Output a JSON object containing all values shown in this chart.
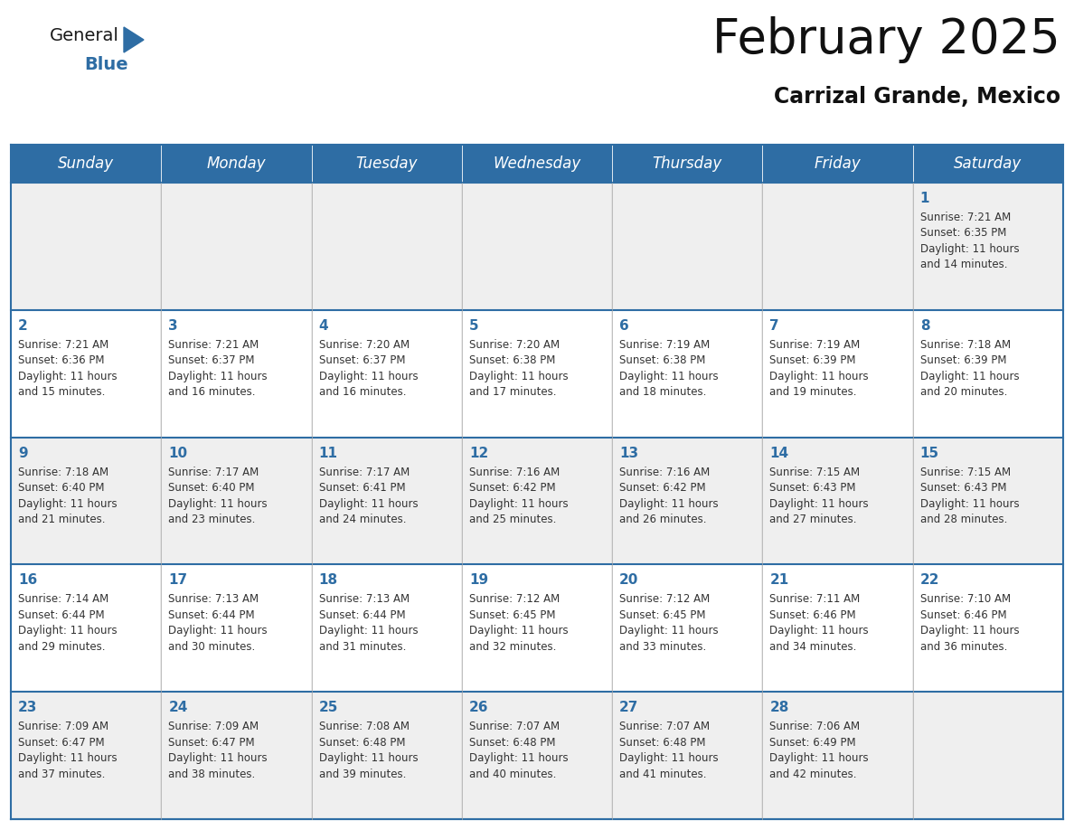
{
  "title": "February 2025",
  "subtitle": "Carrizal Grande, Mexico",
  "header_color": "#2E6DA4",
  "header_text_color": "#FFFFFF",
  "bg_color": "#FFFFFF",
  "cell_bg_row0": "#EFEFEF",
  "cell_bg_row1": "#FFFFFF",
  "cell_bg_row2": "#EFEFEF",
  "cell_bg_row3": "#FFFFFF",
  "cell_bg_row4": "#EFEFEF",
  "day_names": [
    "Sunday",
    "Monday",
    "Tuesday",
    "Wednesday",
    "Thursday",
    "Friday",
    "Saturday"
  ],
  "title_fontsize": 38,
  "subtitle_fontsize": 17,
  "header_fontsize": 12,
  "day_num_fontsize": 11,
  "cell_fontsize": 8.5,
  "text_color": "#333333",
  "day_num_color": "#2E6DA4",
  "line_color": "#2E6DA4",
  "logo_general_color": "#1a1a1a",
  "logo_blue_color": "#2E6DA4",
  "days": [
    {
      "day": 1,
      "col": 6,
      "row": 0,
      "sunrise": "7:21 AM",
      "sunset": "6:35 PM",
      "daylight": "11 hours and 14 minutes."
    },
    {
      "day": 2,
      "col": 0,
      "row": 1,
      "sunrise": "7:21 AM",
      "sunset": "6:36 PM",
      "daylight": "11 hours and 15 minutes."
    },
    {
      "day": 3,
      "col": 1,
      "row": 1,
      "sunrise": "7:21 AM",
      "sunset": "6:37 PM",
      "daylight": "11 hours and 16 minutes."
    },
    {
      "day": 4,
      "col": 2,
      "row": 1,
      "sunrise": "7:20 AM",
      "sunset": "6:37 PM",
      "daylight": "11 hours and 16 minutes."
    },
    {
      "day": 5,
      "col": 3,
      "row": 1,
      "sunrise": "7:20 AM",
      "sunset": "6:38 PM",
      "daylight": "11 hours and 17 minutes."
    },
    {
      "day": 6,
      "col": 4,
      "row": 1,
      "sunrise": "7:19 AM",
      "sunset": "6:38 PM",
      "daylight": "11 hours and 18 minutes."
    },
    {
      "day": 7,
      "col": 5,
      "row": 1,
      "sunrise": "7:19 AM",
      "sunset": "6:39 PM",
      "daylight": "11 hours and 19 minutes."
    },
    {
      "day": 8,
      "col": 6,
      "row": 1,
      "sunrise": "7:18 AM",
      "sunset": "6:39 PM",
      "daylight": "11 hours and 20 minutes."
    },
    {
      "day": 9,
      "col": 0,
      "row": 2,
      "sunrise": "7:18 AM",
      "sunset": "6:40 PM",
      "daylight": "11 hours and 21 minutes."
    },
    {
      "day": 10,
      "col": 1,
      "row": 2,
      "sunrise": "7:17 AM",
      "sunset": "6:40 PM",
      "daylight": "11 hours and 23 minutes."
    },
    {
      "day": 11,
      "col": 2,
      "row": 2,
      "sunrise": "7:17 AM",
      "sunset": "6:41 PM",
      "daylight": "11 hours and 24 minutes."
    },
    {
      "day": 12,
      "col": 3,
      "row": 2,
      "sunrise": "7:16 AM",
      "sunset": "6:42 PM",
      "daylight": "11 hours and 25 minutes."
    },
    {
      "day": 13,
      "col": 4,
      "row": 2,
      "sunrise": "7:16 AM",
      "sunset": "6:42 PM",
      "daylight": "11 hours and 26 minutes."
    },
    {
      "day": 14,
      "col": 5,
      "row": 2,
      "sunrise": "7:15 AM",
      "sunset": "6:43 PM",
      "daylight": "11 hours and 27 minutes."
    },
    {
      "day": 15,
      "col": 6,
      "row": 2,
      "sunrise": "7:15 AM",
      "sunset": "6:43 PM",
      "daylight": "11 hours and 28 minutes."
    },
    {
      "day": 16,
      "col": 0,
      "row": 3,
      "sunrise": "7:14 AM",
      "sunset": "6:44 PM",
      "daylight": "11 hours and 29 minutes."
    },
    {
      "day": 17,
      "col": 1,
      "row": 3,
      "sunrise": "7:13 AM",
      "sunset": "6:44 PM",
      "daylight": "11 hours and 30 minutes."
    },
    {
      "day": 18,
      "col": 2,
      "row": 3,
      "sunrise": "7:13 AM",
      "sunset": "6:44 PM",
      "daylight": "11 hours and 31 minutes."
    },
    {
      "day": 19,
      "col": 3,
      "row": 3,
      "sunrise": "7:12 AM",
      "sunset": "6:45 PM",
      "daylight": "11 hours and 32 minutes."
    },
    {
      "day": 20,
      "col": 4,
      "row": 3,
      "sunrise": "7:12 AM",
      "sunset": "6:45 PM",
      "daylight": "11 hours and 33 minutes."
    },
    {
      "day": 21,
      "col": 5,
      "row": 3,
      "sunrise": "7:11 AM",
      "sunset": "6:46 PM",
      "daylight": "11 hours and 34 minutes."
    },
    {
      "day": 22,
      "col": 6,
      "row": 3,
      "sunrise": "7:10 AM",
      "sunset": "6:46 PM",
      "daylight": "11 hours and 36 minutes."
    },
    {
      "day": 23,
      "col": 0,
      "row": 4,
      "sunrise": "7:09 AM",
      "sunset": "6:47 PM",
      "daylight": "11 hours and 37 minutes."
    },
    {
      "day": 24,
      "col": 1,
      "row": 4,
      "sunrise": "7:09 AM",
      "sunset": "6:47 PM",
      "daylight": "11 hours and 38 minutes."
    },
    {
      "day": 25,
      "col": 2,
      "row": 4,
      "sunrise": "7:08 AM",
      "sunset": "6:48 PM",
      "daylight": "11 hours and 39 minutes."
    },
    {
      "day": 26,
      "col": 3,
      "row": 4,
      "sunrise": "7:07 AM",
      "sunset": "6:48 PM",
      "daylight": "11 hours and 40 minutes."
    },
    {
      "day": 27,
      "col": 4,
      "row": 4,
      "sunrise": "7:07 AM",
      "sunset": "6:48 PM",
      "daylight": "11 hours and 41 minutes."
    },
    {
      "day": 28,
      "col": 5,
      "row": 4,
      "sunrise": "7:06 AM",
      "sunset": "6:49 PM",
      "daylight": "11 hours and 42 minutes."
    }
  ]
}
